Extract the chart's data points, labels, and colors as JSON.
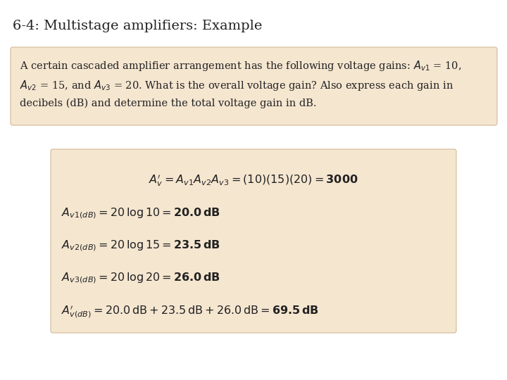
{
  "title": "6-4: Multistage amplifiers: Example",
  "title_fontsize": 14,
  "bg_color": "#ffffff",
  "box_color": "#f5e6d0",
  "box_edge_color": "#d4b896",
  "problem_lines": [
    "A certain cascaded amplifier arrangement has the following voltage gains: $A_{v1}$ = 10,",
    "$A_{v2}$ = 15, and $A_{v3}$ = 20. What is the overall voltage gain? Also express each gain in",
    "decibels (dB) and determine the total voltage gain in dB."
  ],
  "problem_fontsize": 10.5,
  "solution_line0": "$A^{\\prime}_{v} = A_{v1}A_{v2}A_{v3} = (10)(15)(20) = \\mathbf{3000}$",
  "solution_line1": "$A_{v1(dB)} = 20\\,\\mathrm{log}\\,10 = \\mathbf{20.0\\,dB}$",
  "solution_line2": "$A_{v2(dB)} = 20\\,\\mathrm{log}\\,15 = \\mathbf{23.5\\,dB}$",
  "solution_line3": "$A_{v3(dB)} = 20\\,\\mathrm{log}\\,20 = \\mathbf{26.0\\,dB}$",
  "solution_line4": "$A^{\\prime}_{v(dB)} = 20.0\\,\\mathrm{dB} + 23.5\\,\\mathrm{dB} + 26.0\\,\\mathrm{dB} = \\mathbf{69.5\\,dB}$",
  "solution_fontsize": 11.5
}
